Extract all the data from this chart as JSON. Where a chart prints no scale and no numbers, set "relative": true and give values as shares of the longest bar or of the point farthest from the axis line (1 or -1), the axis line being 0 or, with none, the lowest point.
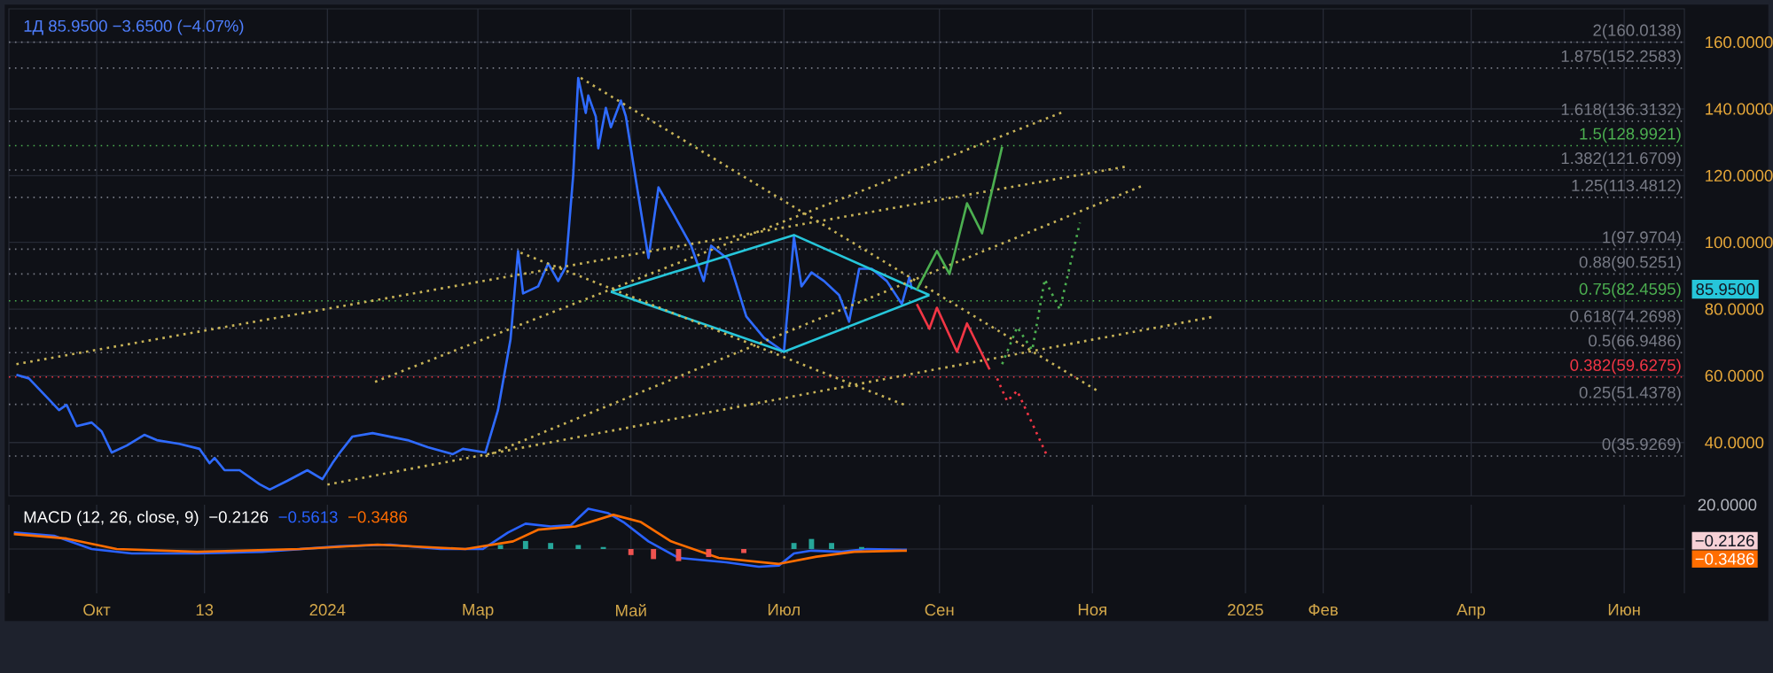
{
  "chart_data": [
    {
      "type": "line",
      "title": "1Д  85.9500  −3.6500 (−4.07%)",
      "xlim": [
        "2023-08-27",
        "2025-06-25"
      ],
      "ylim": [
        24,
        170
      ],
      "xticks": [
        {
          "value": "2023-10-01",
          "label": null
        },
        {
          "value": "2023-11-13",
          "label": null
        },
        {
          "value": "2024-01-01",
          "label": null
        },
        {
          "value": "2024-03-01",
          "label": null
        },
        {
          "value": "2024-05-01",
          "label": null
        },
        {
          "value": "2024-07-01",
          "label": null
        },
        {
          "value": "2024-09-01",
          "label": null
        },
        {
          "value": "2024-11-01",
          "label": null
        },
        {
          "value": "2025-01-01",
          "label": null
        },
        {
          "value": "2025-02-01",
          "label": null
        },
        {
          "value": "2025-04-01",
          "label": null
        },
        {
          "value": "2025-06-01",
          "label": null
        }
      ],
      "yticks": [
        {
          "value": 40,
          "label": "40.0000"
        },
        {
          "value": 60,
          "label": "60.0000"
        },
        {
          "value": 80,
          "label": "80.0000"
        },
        {
          "value": 100,
          "label": "100.0000"
        },
        {
          "value": 120,
          "label": "120.0000"
        },
        {
          "value": 140,
          "label": "140.0000"
        },
        {
          "value": 160,
          "label": "160.0000"
        }
      ],
      "tick_labels": "y",
      "grid": true,
      "marker": "none",
      "series": [
        {
          "color": "#2f6bff",
          "line_style": "solid",
          "x": [
            "2023-08-30",
            "2023-09-04",
            "2023-09-12",
            "2023-09-16",
            "2023-09-19",
            "2023-09-23",
            "2023-09-29",
            "2023-10-03",
            "2023-10-07",
            "2023-10-13",
            "2023-10-20",
            "2023-10-25",
            "2023-11-03",
            "2023-11-11",
            "2023-11-15",
            "2023-11-17",
            "2023-11-21",
            "2023-11-27",
            "2023-12-05",
            "2023-12-09",
            "2023-12-16",
            "2023-12-24",
            "2023-12-30",
            "2024-01-03",
            "2024-01-06",
            "2024-01-11",
            "2024-01-19",
            "2024-02-02",
            "2024-02-10",
            "2024-02-20",
            "2024-02-24",
            "2024-03-04",
            "2024-03-09",
            "2024-03-14",
            "2024-03-17",
            "2024-03-19",
            "2024-03-25",
            "2024-03-29",
            "2024-04-02",
            "2024-04-05",
            "2024-04-08",
            "2024-04-10",
            "2024-04-13",
            "2024-04-14",
            "2024-04-17",
            "2024-04-18",
            "2024-04-21",
            "2024-04-23",
            "2024-04-27",
            "2024-04-29",
            "2024-05-03",
            "2024-05-08",
            "2024-05-12",
            "2024-05-18",
            "2024-05-25",
            "2024-05-30",
            "2024-06-02",
            "2024-06-09",
            "2024-06-16",
            "2024-06-23",
            "2024-07-01",
            "2024-07-05",
            "2024-07-08",
            "2024-07-12",
            "2024-07-17",
            "2024-07-23",
            "2024-07-27",
            "2024-07-31",
            "2024-08-05",
            "2024-08-11",
            "2024-08-17",
            "2024-08-20",
            "2024-08-21"
          ],
          "values": [
            60.3,
            59.2,
            52.9,
            49.7,
            51.3,
            44.9,
            46.0,
            43.3,
            37.0,
            39.1,
            42.3,
            40.7,
            39.6,
            38.1,
            33.8,
            35.4,
            31.7,
            31.7,
            27.5,
            25.9,
            28.5,
            31.7,
            29.0,
            33.8,
            37.0,
            41.8,
            42.8,
            40.7,
            38.6,
            36.5,
            38.1,
            37.0,
            49.7,
            70.9,
            97.4,
            84.7,
            86.8,
            93.7,
            88.4,
            92.6,
            120.2,
            149.3,
            138.8,
            144.0,
            137.7,
            128.2,
            140.3,
            134.5,
            142.5,
            137.7,
            118.6,
            95.3,
            116.5,
            108.5,
            99.0,
            88.4,
            99.0,
            94.8,
            77.8,
            71.4,
            67.2,
            101.6,
            86.8,
            91.0,
            88.4,
            84.2,
            76.2,
            92.1,
            92.1,
            88.4,
            81.5,
            89.5,
            85.95
          ]
        },
        {
          "color": "#26c6da",
          "line_style": "solid",
          "x": [
            "2024-04-23",
            "2024-07-05",
            "2024-08-28"
          ],
          "values": [
            85.2,
            102.2,
            84.2
          ]
        },
        {
          "color": "#26c6da",
          "line_style": "solid",
          "x": [
            "2024-04-23",
            "2024-07-01",
            "2024-08-28"
          ],
          "values": [
            85.2,
            67.2,
            84.2
          ]
        },
        {
          "color": "#c9b458",
          "line_style": "dotted",
          "x": [
            "2023-08-30",
            "2024-11-15"
          ],
          "values": [
            63.5,
            122.8
          ]
        },
        {
          "color": "#c9b458",
          "line_style": "dotted",
          "x": [
            "2024-01-20",
            "2024-10-21"
          ],
          "values": [
            58.2,
            139.3
          ]
        },
        {
          "color": "#c9b458",
          "line_style": "dotted",
          "x": [
            "2024-01-01",
            "2024-12-20"
          ],
          "values": [
            27.4,
            77.8
          ]
        },
        {
          "color": "#c9b458",
          "line_style": "dotted",
          "x": [
            "2024-03-04",
            "2024-11-21"
          ],
          "values": [
            35.9,
            117.0
          ]
        },
        {
          "color": "#c9b458",
          "line_style": "dotted",
          "x": [
            "2024-04-11",
            "2024-11-03"
          ],
          "values": [
            149.3,
            55.5
          ]
        },
        {
          "color": "#c9b458",
          "line_style": "dotted",
          "x": [
            "2024-03-18",
            "2024-08-18"
          ],
          "values": [
            96.9,
            51.3
          ]
        },
        {
          "color": "#4caf50",
          "line_style": "solid",
          "x": [
            "2024-08-23",
            "2024-08-31",
            "2024-09-05",
            "2024-09-12",
            "2024-09-18",
            "2024-09-26"
          ],
          "values": [
            85.8,
            97.4,
            90.5,
            111.7,
            102.7,
            128.7
          ]
        },
        {
          "color": "#f23645",
          "line_style": "solid",
          "x": [
            "2024-08-23",
            "2024-08-28",
            "2024-08-31",
            "2024-09-08",
            "2024-09-12",
            "2024-09-21"
          ],
          "values": [
            81.5,
            74.1,
            80.4,
            67.2,
            75.7,
            61.9
          ]
        },
        {
          "color": "#f23645",
          "line_style": "dotted",
          "x": [
            "2024-09-24",
            "2024-09-28",
            "2024-10-02",
            "2024-10-14"
          ],
          "values": [
            59.2,
            52.4,
            55.5,
            35.9
          ]
        },
        {
          "color": "#4caf50",
          "line_style": "dotted",
          "x": [
            "2024-09-26",
            "2024-10-02",
            "2024-10-08",
            "2024-10-13",
            "2024-10-19",
            "2024-10-27"
          ],
          "values": [
            63.5,
            74.6,
            67.7,
            88.9,
            79.9,
            105.9
          ]
        }
      ],
      "ref_lines": [
        {
          "axis": "y",
          "value": 160.0138,
          "label": "2(160.0138)",
          "color": "#787b86",
          "line_style": "dotted"
        },
        {
          "axis": "y",
          "value": 152.2583,
          "label": "1.875(152.2583)",
          "color": "#787b86",
          "line_style": "dotted"
        },
        {
          "axis": "y",
          "value": 136.3132,
          "label": "1.618(136.3132)",
          "color": "#787b86",
          "line_style": "dotted"
        },
        {
          "axis": "y",
          "value": 128.9921,
          "label": "1.5(128.9921)",
          "color": "#4caf50",
          "line_style": "dotted"
        },
        {
          "axis": "y",
          "value": 121.6709,
          "label": "1.382(121.6709)",
          "color": "#787b86",
          "line_style": "dotted"
        },
        {
          "axis": "y",
          "value": 113.4812,
          "label": "1.25(113.4812)",
          "color": "#787b86",
          "line_style": "dotted"
        },
        {
          "axis": "y",
          "value": 97.9704,
          "label": "1(97.9704)",
          "color": "#787b86",
          "line_style": "dotted"
        },
        {
          "axis": "y",
          "value": 90.5251,
          "label": "0.88(90.5251)",
          "color": "#787b86",
          "line_style": "dotted"
        },
        {
          "axis": "y",
          "value": 82.4595,
          "label": "0.75(82.4595)",
          "color": "#4caf50",
          "line_style": "dotted"
        },
        {
          "axis": "y",
          "value": 74.2698,
          "label": "0.618(74.2698)",
          "color": "#787b86",
          "line_style": "dotted"
        },
        {
          "axis": "y",
          "value": 66.9486,
          "label": "0.5(66.9486)",
          "color": "#787b86",
          "line_style": "dotted"
        },
        {
          "axis": "y",
          "value": 59.6275,
          "label": "0.382(59.6275)",
          "color": "#f23645",
          "line_style": "dotted"
        },
        {
          "axis": "y",
          "value": 51.4378,
          "label": "0.25(51.4378)",
          "color": "#787b86",
          "line_style": "dotted"
        },
        {
          "axis": "y",
          "value": 35.9269,
          "label": "0(35.9269)",
          "color": "#787b86",
          "line_style": "dotted"
        }
      ],
      "annotations": [
        "85.9500"
      ]
    },
    {
      "type": "line",
      "title": "MACD (12, 26, close, 9)",
      "relative": true,
      "tick_labels": "x",
      "grid": true,
      "marker": "none",
      "xlim": [
        "2023-08-27",
        "2025-06-25"
      ],
      "xticks": [
        {
          "value": "2023-10-01",
          "label": "Окт"
        },
        {
          "value": "2023-11-13",
          "label": "13"
        },
        {
          "value": "2024-01-01",
          "label": "2024"
        },
        {
          "value": "2024-03-01",
          "label": "Мар"
        },
        {
          "value": "2024-05-01",
          "label": "Май"
        },
        {
          "value": "2024-07-01",
          "label": "Июл"
        },
        {
          "value": "2024-09-01",
          "label": "Сен"
        },
        {
          "value": "2024-11-01",
          "label": "Ноя"
        },
        {
          "value": "2025-01-01",
          "label": "2025"
        },
        {
          "value": "2025-02-01",
          "label": "Фев"
        },
        {
          "value": "2025-04-01",
          "label": "Апр"
        },
        {
          "value": "2025-06-01",
          "label": "Июн"
        }
      ],
      "series": [
        {
          "color": "#2962ff",
          "x": [
            "2023-08-29",
            "2023-09-14",
            "2023-09-29",
            "2023-10-15",
            "2023-11-10",
            "2023-12-06",
            "2024-01-06",
            "2024-01-26",
            "2024-02-15",
            "2024-03-03",
            "2024-03-13",
            "2024-03-20",
            "2024-03-30",
            "2024-04-07",
            "2024-04-14",
            "2024-04-22",
            "2024-04-28",
            "2024-05-08",
            "2024-05-20",
            "2024-06-08",
            "2024-06-21",
            "2024-06-29",
            "2024-07-05",
            "2024-07-12",
            "2024-07-24",
            "2024-08-03",
            "2024-08-19"
          ],
          "values": [
            0.41,
            0.33,
            0,
            -0.11,
            -0.11,
            -0.07,
            0.07,
            0.11,
            0,
            0,
            0.41,
            0.63,
            0.56,
            0.59,
            1,
            0.89,
            0.67,
            0.19,
            -0.22,
            -0.33,
            -0.44,
            -0.41,
            -0.11,
            -0.04,
            -0.07,
            0,
            -0.02
          ]
        },
        {
          "color": "#ff6d00",
          "x": [
            "2023-08-29",
            "2023-09-19",
            "2023-10-09",
            "2023-11-10",
            "2023-12-21",
            "2024-01-21",
            "2024-02-25",
            "2024-03-15",
            "2024-03-25",
            "2024-04-09",
            "2024-04-24",
            "2024-05-05",
            "2024-05-17",
            "2024-06-05",
            "2024-06-29",
            "2024-07-14",
            "2024-07-29",
            "2024-08-19"
          ],
          "values": [
            0.37,
            0.26,
            0,
            -0.07,
            0,
            0.11,
            0,
            0.19,
            0.48,
            0.56,
            0.85,
            0.67,
            0.19,
            -0.22,
            -0.37,
            -0.19,
            -0.07,
            -0.04
          ]
        },
        {
          "type": "bar",
          "x": [
            "2024-03-10",
            "2024-03-20",
            "2024-03-30",
            "2024-04-10",
            "2024-04-20",
            "2024-05-01",
            "2024-05-10",
            "2024-05-20",
            "2024-06-01",
            "2024-06-15",
            "2024-07-05",
            "2024-07-12",
            "2024-07-20",
            "2024-08-01"
          ],
          "values": [
            0.1,
            0.2,
            0.15,
            0.1,
            0.05,
            -0.15,
            -0.25,
            -0.3,
            -0.2,
            -0.1,
            0.15,
            0.25,
            0.15,
            0.05
          ],
          "colors": [
            "#26a69a",
            "#26a69a",
            "#26a69a",
            "#26a69a",
            "#26a69a",
            "#ef5350",
            "#ef5350",
            "#ef5350",
            "#ef5350",
            "#ef5350",
            "#26a69a",
            "#26a69a",
            "#26a69a",
            "#26a69a"
          ]
        }
      ],
      "annotations": [
        "−0.2126",
        "−0.5613",
        "−0.3486",
        "20.0000",
        "−0.2126",
        "−0.3486"
      ]
    }
  ]
}
